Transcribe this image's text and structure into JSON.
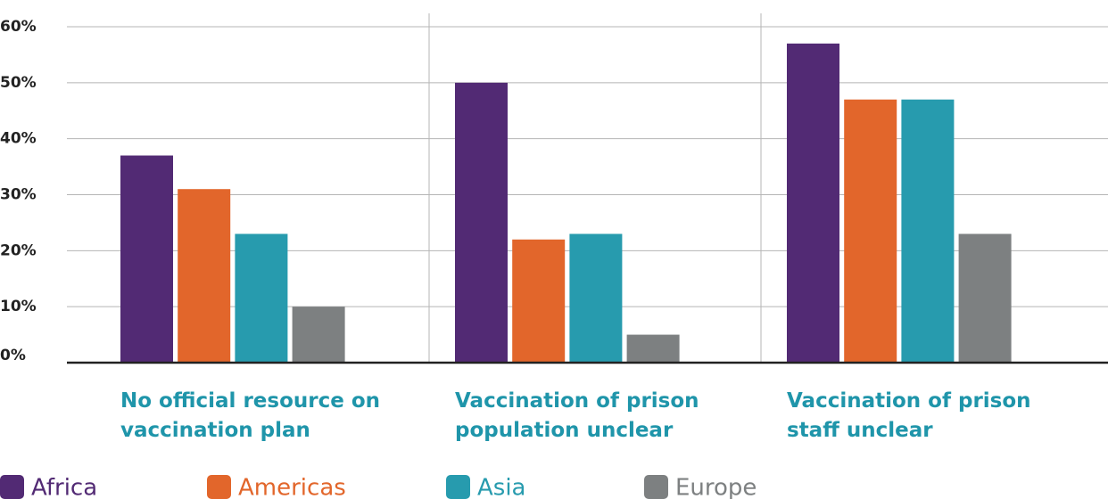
{
  "chart_data": {
    "type": "bar",
    "categories": [
      "No official resource on vaccination plan",
      "Vaccination of prison population unclear",
      "Vaccination of prison staff unclear"
    ],
    "series": [
      {
        "name": "Africa",
        "color": "#522a74",
        "values": [
          37,
          50,
          57
        ]
      },
      {
        "name": "Americas",
        "color": "#e2662b",
        "values": [
          31,
          22,
          47
        ]
      },
      {
        "name": "Asia",
        "color": "#279bae",
        "values": [
          23,
          23,
          47
        ]
      },
      {
        "name": "Europe",
        "color": "#7d8081",
        "values": [
          10,
          5,
          23
        ]
      }
    ],
    "ylim": [
      0,
      60
    ],
    "yticks": [
      {
        "value": 0,
        "label": "0%"
      },
      {
        "value": 10,
        "label": "10%"
      },
      {
        "value": 20,
        "label": "20%"
      },
      {
        "value": 30,
        "label": "30%"
      },
      {
        "value": 40,
        "label": "40%"
      },
      {
        "value": 50,
        "label": "50%"
      },
      {
        "value": 60,
        "label": "60%"
      }
    ],
    "grid": true,
    "legend": "bottom"
  }
}
